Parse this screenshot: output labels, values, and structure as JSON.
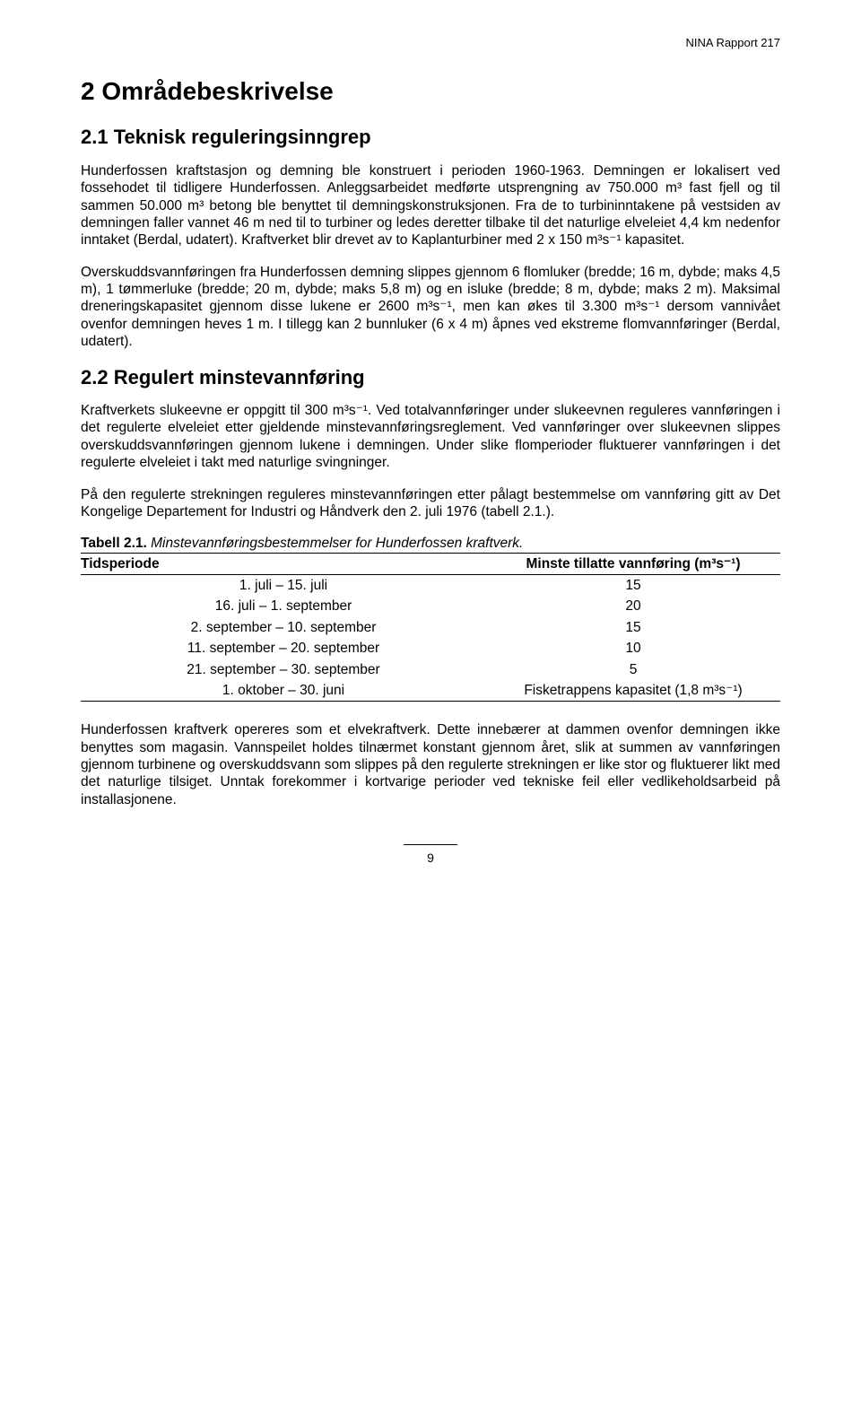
{
  "header": {
    "report_id": "NINA Rapport 217"
  },
  "h1": "2  Områdebeskrivelse",
  "s1": {
    "title": "2.1 Teknisk reguleringsinngrep",
    "p1": "Hunderfossen kraftstasjon og demning ble konstruert i perioden 1960-1963. Demningen er lokalisert ved fossehodet til tidligere Hunderfossen. Anleggsarbeidet medførte utsprengning av 750.000 m³ fast fjell og til sammen 50.000 m³ betong ble benyttet til demningskonstruksjonen. Fra de to turbininntakene på vestsiden av demningen faller vannet 46 m ned til to turbiner og ledes deretter tilbake til det naturlige elveleiet 4,4 km nedenfor inntaket (Berdal, udatert). Kraftverket blir drevet av to Kaplanturbiner med 2 x 150 m³s⁻¹ kapasitet.",
    "p2": "Overskuddsvannføringen fra Hunderfossen demning slippes gjennom 6 flomluker (bredde; 16 m, dybde; maks 4,5 m), 1 tømmerluke (bredde; 20 m, dybde; maks 5,8 m) og en isluke (bredde; 8 m, dybde; maks 2 m). Maksimal dreneringskapasitet gjennom disse lukene er 2600 m³s⁻¹, men kan økes til 3.300 m³s⁻¹ dersom vannivået ovenfor demningen heves 1 m. I tillegg kan 2 bunnluker (6 x 4 m) åpnes ved ekstreme flomvannføringer (Berdal, udatert)."
  },
  "s2": {
    "title": "2.2 Regulert minstevannføring",
    "p1": "Kraftverkets slukeevne er oppgitt til 300 m³s⁻¹. Ved totalvannføringer under slukeevnen reguleres vannføringen i det regulerte elveleiet etter gjeldende minstevannføringsreglement. Ved vannføringer over slukeevnen slippes overskuddsvannføringen gjennom lukene i demningen. Under slike flomperioder fluktuerer vannføringen i det regulerte elveleiet i takt med naturlige svingninger.",
    "p2": "På den regulerte strekningen reguleres minstevannføringen etter pålagt bestemmelse om vannføring gitt av Det Kongelige Departement for Industri og Håndverk den 2. juli 1976 (tabell 2.1.)."
  },
  "table": {
    "caption_bold": "Tabell 2.1.",
    "caption_italic": " Minstevannføringsbestemmelser for Hunderfossen kraftverk.",
    "col1": "Tidsperiode",
    "col2": "Minste tillatte vannføring (m³s⁻¹)",
    "rows": [
      {
        "period": "1. juli – 15. juli",
        "value": "15"
      },
      {
        "period": "16. juli – 1. september",
        "value": "20"
      },
      {
        "period": "2. september – 10. september",
        "value": "15"
      },
      {
        "period": "11. september – 20. september",
        "value": "10"
      },
      {
        "period": "21. september – 30. september",
        "value": "5"
      },
      {
        "period": "1. oktober – 30. juni",
        "value": "Fisketrappens kapasitet (1,8 m³s⁻¹)"
      }
    ]
  },
  "s3": {
    "p1": "Hunderfossen kraftverk opereres som et elvekraftverk. Dette innebærer at dammen ovenfor demningen ikke benyttes som magasin. Vannspeilet holdes tilnærmet konstant gjennom året, slik at summen av vannføringen gjennom turbinene og overskuddsvann som slippes på den regulerte strekningen er like stor og fluktuerer likt med det naturlige tilsiget. Unntak forekommer i kortvarige perioder ved tekniske feil eller vedlikeholdsarbeid på installasjonene."
  },
  "page_number": "9"
}
